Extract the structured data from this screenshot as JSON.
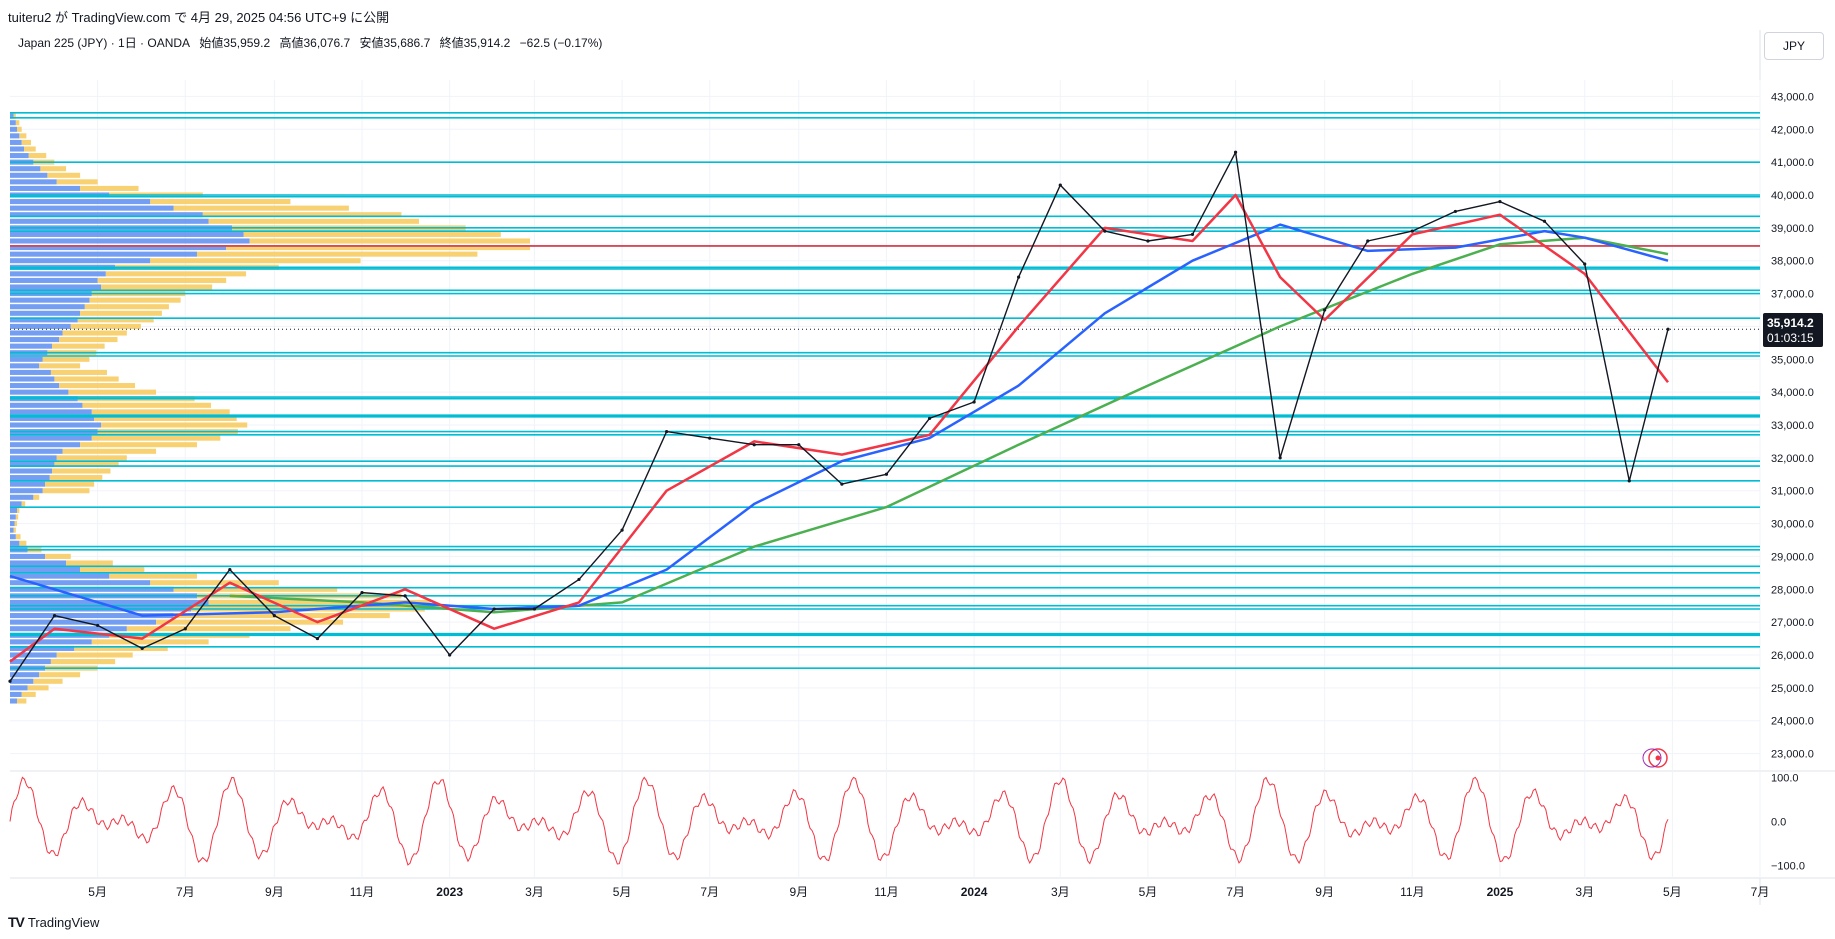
{
  "header": {
    "published": "tuiteru2 が TradingView.com で 4月 29, 2025 04:56 UTC+9 に公開"
  },
  "legend": {
    "symbol": "Japan 225 (JPY) · 1日 · OANDA",
    "open": "始値35,959.2",
    "high": "高値36,076.7",
    "low": "安値35,686.7",
    "close": "終値35,914.2",
    "change": "−62.5 (−0.17%)"
  },
  "currency": "JPY",
  "last_price": {
    "price": "35,914.2",
    "countdown": "01:03:15"
  },
  "watermark": "TradingView",
  "colors": {
    "candle": "#131722",
    "ma_fast": "#f23645",
    "ma_mid": "#2962ff",
    "ma_slow": "#4caf50",
    "hline": "#00bcd4",
    "poc": "#f23645",
    "vp_up": "#5b8def",
    "vp_down": "#f7c95b",
    "oscillator": "#f23645"
  },
  "chart_data": [
    {
      "type": "line",
      "title": "Japan 225 (JPY) · 1日 · OANDA",
      "y_axis": {
        "range": [
          22500,
          43500
        ],
        "ticks": [
          "23,000.0",
          "24,000.0",
          "25,000.0",
          "26,000.0",
          "27,000.0",
          "28,000.0",
          "29,000.0",
          "30,000.0",
          "31,000.0",
          "32,000.0",
          "33,000.0",
          "34,000.0",
          "35,000.0",
          "36,000.0",
          "37,000.0",
          "38,000.0",
          "39,000.0",
          "40,000.0",
          "41,000.0",
          "42,000.0",
          "43,000.0"
        ],
        "tick_values": [
          23000,
          24000,
          25000,
          26000,
          27000,
          28000,
          29000,
          30000,
          31000,
          32000,
          33000,
          34000,
          35000,
          36000,
          37000,
          38000,
          39000,
          40000,
          41000,
          42000,
          43000
        ]
      },
      "x_axis": {
        "range": [
          "2022-03",
          "2025-07"
        ],
        "tick_labels": [
          "5月",
          "7月",
          "9月",
          "11月",
          "2023",
          "3月",
          "5月",
          "7月",
          "9月",
          "11月",
          "2024",
          "3月",
          "5月",
          "7月",
          "9月",
          "11月",
          "2025",
          "3月",
          "5月",
          "7月"
        ],
        "tick_dates": [
          "2022-05",
          "2022-07",
          "2022-09",
          "2022-11",
          "2023-01",
          "2023-03",
          "2023-05",
          "2023-07",
          "2023-09",
          "2023-11",
          "2024-01",
          "2024-03",
          "2024-05",
          "2024-07",
          "2024-09",
          "2024-11",
          "2025-01",
          "2025-03",
          "2025-05",
          "2025-07"
        ]
      },
      "series": [
        {
          "kind": "price",
          "x": [
            "2022-03",
            "2022-04",
            "2022-05",
            "2022-06",
            "2022-07",
            "2022-08",
            "2022-09",
            "2022-10",
            "2022-11",
            "2022-12",
            "2023-01",
            "2023-02",
            "2023-03",
            "2023-04",
            "2023-05",
            "2023-06",
            "2023-07",
            "2023-08",
            "2023-09",
            "2023-10",
            "2023-11",
            "2023-12",
            "2024-01",
            "2024-02",
            "2024-03",
            "2024-04",
            "2024-05",
            "2024-06",
            "2024-07",
            "2024-08",
            "2024-09",
            "2024-10",
            "2024-11",
            "2024-12",
            "2025-01",
            "2025-02",
            "2025-03",
            "2025-04",
            "2025-04-28"
          ],
          "y": [
            25200,
            27200,
            26900,
            26200,
            26800,
            28600,
            27200,
            26500,
            27900,
            27800,
            26000,
            27400,
            27400,
            28300,
            29800,
            32800,
            32600,
            32400,
            32400,
            31200,
            31500,
            33200,
            33700,
            37500,
            40300,
            38900,
            38600,
            38800,
            41300,
            32000,
            36500,
            38600,
            38900,
            39500,
            39800,
            39200,
            37900,
            31300,
            35914.2
          ]
        },
        {
          "kind": "ma_fast",
          "x": [
            "2022-03",
            "2022-04",
            "2022-06",
            "2022-08",
            "2022-10",
            "2022-12",
            "2023-02",
            "2023-04",
            "2023-06",
            "2023-08",
            "2023-10",
            "2023-12",
            "2024-02",
            "2024-04",
            "2024-06",
            "2024-07",
            "2024-08",
            "2024-09",
            "2024-11",
            "2025-01",
            "2025-03",
            "2025-04-28"
          ],
          "y": [
            25800,
            26800,
            26500,
            28200,
            27000,
            28000,
            26800,
            27600,
            31000,
            32500,
            32100,
            32700,
            36000,
            39000,
            38600,
            40000,
            37500,
            36200,
            38800,
            39400,
            37600,
            34300
          ]
        },
        {
          "kind": "ma_mid",
          "x": [
            "2022-03",
            "2022-06",
            "2022-09",
            "2022-12",
            "2023-02",
            "2023-04",
            "2023-06",
            "2023-08",
            "2023-10",
            "2023-12",
            "2024-02",
            "2024-04",
            "2024-06",
            "2024-08",
            "2024-10",
            "2024-12",
            "2025-02",
            "2025-03",
            "2025-04-28"
          ],
          "y": [
            28400,
            27200,
            27300,
            27600,
            27400,
            27500,
            28600,
            30600,
            31900,
            32600,
            34200,
            36400,
            38000,
            39100,
            38300,
            38400,
            38900,
            38700,
            38000
          ]
        },
        {
          "kind": "ma_slow",
          "x": [
            "2022-08",
            "2022-11",
            "2023-02",
            "2023-05",
            "2023-08",
            "2023-11",
            "2024-02",
            "2024-05",
            "2024-08",
            "2024-11",
            "2025-01",
            "2025-03",
            "2025-04-28"
          ],
          "y": [
            27800,
            27600,
            27300,
            27600,
            29300,
            30500,
            32400,
            34200,
            36000,
            37600,
            38500,
            38700,
            38200
          ]
        }
      ],
      "horizontal_levels": [
        42500,
        42350,
        41000,
        40000,
        39950,
        39350,
        39000,
        38900,
        38450,
        37800,
        37750,
        37100,
        37000,
        36250,
        35200,
        35100,
        33850,
        33800,
        33300,
        33250,
        32800,
        32700,
        31900,
        31750,
        31300,
        30500,
        29300,
        29200,
        28700,
        28500,
        28050,
        27800,
        27500,
        27400,
        26650,
        26600,
        26250,
        25600
      ],
      "poc_level": 38450,
      "volume_profile": {
        "price_levels": [
          42400,
          42200,
          42000,
          41800,
          41600,
          41400,
          41200,
          41000,
          40800,
          40600,
          40400,
          40200,
          40000,
          39800,
          39600,
          39400,
          39200,
          39000,
          38800,
          38600,
          38400,
          38200,
          38000,
          37800,
          37600,
          37400,
          37200,
          37000,
          36800,
          36600,
          36400,
          36200,
          36000,
          35800,
          35600,
          35400,
          35200,
          35000,
          34800,
          34600,
          34400,
          34200,
          34000,
          33800,
          33600,
          33400,
          33200,
          33000,
          32800,
          32600,
          32400,
          32200,
          32000,
          31800,
          31600,
          31400,
          31200,
          31000,
          30800,
          30600,
          30400,
          30200,
          30000,
          29800,
          29600,
          29400,
          29200,
          29000,
          28800,
          28600,
          28400,
          28200,
          28000,
          27800,
          27600,
          27400,
          27200,
          27000,
          26800,
          26600,
          26400,
          26200,
          26000,
          25800,
          25600,
          25400,
          25200,
          25000,
          24800,
          24600
        ],
        "up": [
          3,
          5,
          6,
          8,
          10,
          12,
          16,
          20,
          26,
          32,
          40,
          60,
          85,
          120,
          140,
          165,
          170,
          190,
          200,
          205,
          185,
          160,
          120,
          90,
          82,
          75,
          78,
          70,
          68,
          64,
          60,
          58,
          52,
          45,
          42,
          36,
          32,
          28,
          25,
          35,
          38,
          42,
          50,
          58,
          62,
          70,
          72,
          78,
          75,
          70,
          60,
          45,
          40,
          38,
          36,
          34,
          30,
          28,
          20,
          10,
          6,
          5,
          4,
          3,
          5,
          8,
          15,
          30,
          48,
          60,
          85,
          120,
          140,
          160,
          170,
          155,
          140,
          125,
          100,
          85,
          70,
          55,
          40,
          35,
          30,
          25,
          20,
          15,
          10,
          6
        ],
        "down": [
          2,
          3,
          4,
          6,
          8,
          10,
          15,
          18,
          22,
          28,
          35,
          50,
          80,
          120,
          150,
          170,
          180,
          200,
          220,
          240,
          260,
          240,
          180,
          140,
          120,
          110,
          95,
          80,
          78,
          72,
          70,
          65,
          60,
          55,
          50,
          45,
          42,
          40,
          35,
          48,
          55,
          65,
          75,
          100,
          110,
          118,
          122,
          125,
          120,
          110,
          100,
          80,
          60,
          55,
          50,
          45,
          42,
          40,
          5,
          3,
          2,
          2,
          2,
          2,
          4,
          6,
          12,
          22,
          40,
          55,
          75,
          110,
          140,
          175,
          190,
          200,
          185,
          160,
          140,
          120,
          100,
          80,
          65,
          55,
          45,
          35,
          25,
          18,
          12,
          8
        ]
      }
    },
    {
      "type": "line",
      "title": "",
      "y_axis": {
        "range": [
          -110,
          110
        ],
        "ticks": [
          "100.0",
          "0.0",
          "−100.0"
        ],
        "tick_values": [
          100,
          0,
          -100
        ]
      },
      "series": [
        {
          "kind": "oscillator",
          "name": "",
          "note": "oscillates between about -100 and +100 in roughly 3-4 week cycles"
        }
      ]
    }
  ],
  "flags": {
    "alert_icon": "alert-marker-icon"
  }
}
